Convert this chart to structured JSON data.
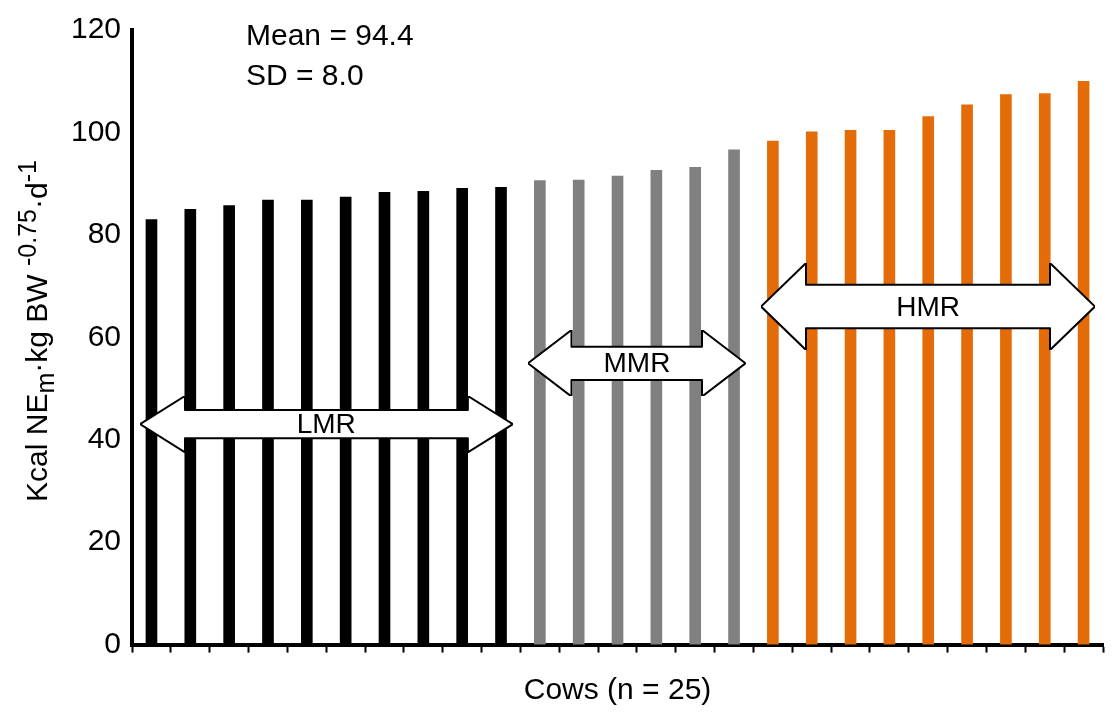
{
  "chart_data": {
    "type": "bar",
    "xlabel": "Cows (n = 25)",
    "ylabel": "Kcal NE$_{m}$·kg BW $^{-0.75}$·d$^{-1}$",
    "categories": [
      null,
      null,
      null,
      null,
      null,
      null,
      null,
      null,
      null,
      null,
      null,
      null,
      null,
      null,
      null,
      null,
      null,
      null,
      null,
      null,
      null,
      null,
      null,
      null,
      null
    ],
    "values": [
      83.0,
      85.0,
      85.7,
      86.8,
      86.8,
      87.4,
      88.3,
      88.5,
      89.1,
      89.3,
      90.6,
      90.7,
      91.5,
      92.6,
      93.2,
      96.6,
      98.3,
      100.1,
      100.4,
      100.4,
      103.1,
      105.4,
      107.4,
      107.6,
      110.0
    ],
    "colors": [
      "#000000",
      "#000000",
      "#000000",
      "#000000",
      "#000000",
      "#000000",
      "#000000",
      "#000000",
      "#000000",
      "#000000",
      "#808080",
      "#808080",
      "#808080",
      "#808080",
      "#808080",
      "#808080",
      "#e36c09",
      "#e36c09",
      "#e36c09",
      "#e36c09",
      "#e36c09",
      "#e36c09",
      "#e36c09",
      "#e36c09",
      "#e36c09"
    ],
    "ylim": [
      0,
      120
    ],
    "yticks": [
      0,
      20,
      40,
      60,
      80,
      100,
      120
    ],
    "grid": false,
    "legend": false,
    "annotations": [
      "Mean = 94.4",
      "SD = 8.0",
      "LMR",
      "MMR",
      "HMR"
    ]
  }
}
